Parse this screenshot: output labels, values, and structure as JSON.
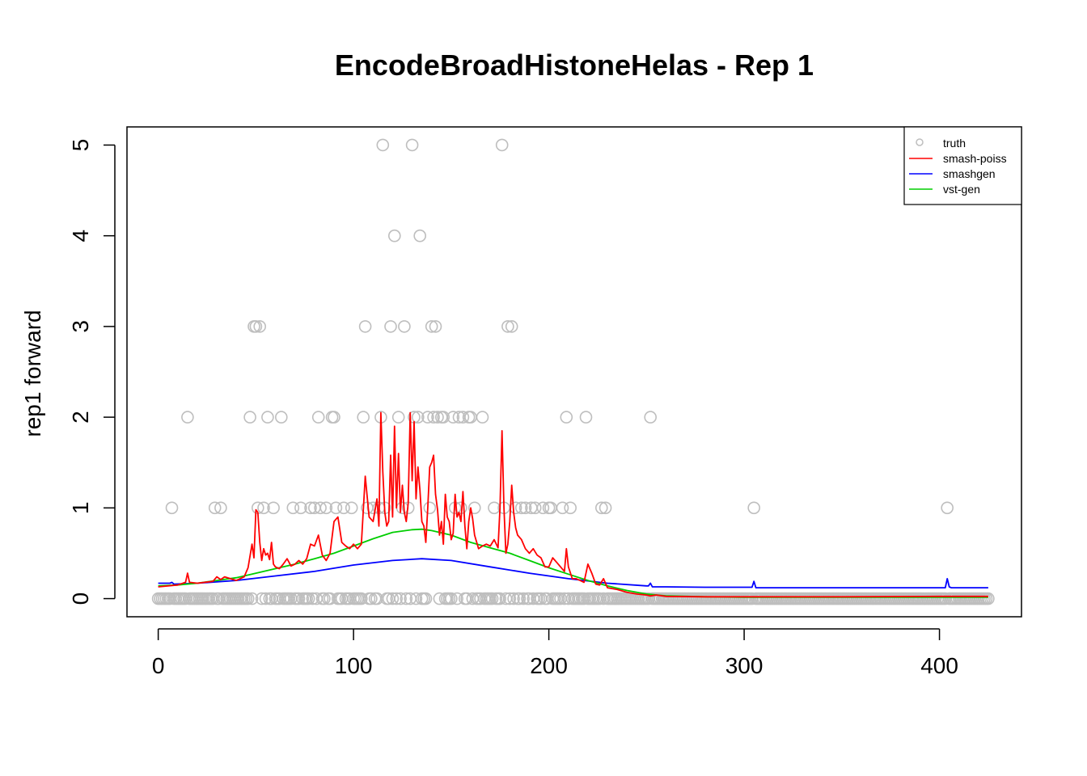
{
  "chart_data": {
    "type": "scatter",
    "title": "EncodeBroadHistoneHelas - Rep 1",
    "xlabel": "",
    "ylabel": "rep1 forward",
    "xlim": [
      -16,
      442
    ],
    "ylim": [
      -0.2,
      5.2
    ],
    "x_ticks": [
      0,
      100,
      200,
      300,
      400
    ],
    "y_ticks": [
      0,
      1,
      2,
      3,
      4,
      5
    ],
    "grid": false,
    "legend_position": "top-right",
    "colors": {
      "truth": "#BEBEBE",
      "smash_poiss": "#FF0000",
      "smashgen": "#0000FF",
      "vst_gen": "#00CD00"
    },
    "n_points": 426,
    "truth_nonzero": [
      {
        "x": 7,
        "y": 1
      },
      {
        "x": 15,
        "y": 2
      },
      {
        "x": 29,
        "y": 1
      },
      {
        "x": 32,
        "y": 1
      },
      {
        "x": 47,
        "y": 2
      },
      {
        "x": 49,
        "y": 3
      },
      {
        "x": 50,
        "y": 3
      },
      {
        "x": 51,
        "y": 1
      },
      {
        "x": 52,
        "y": 3
      },
      {
        "x": 54,
        "y": 1
      },
      {
        "x": 56,
        "y": 2
      },
      {
        "x": 59,
        "y": 1
      },
      {
        "x": 63,
        "y": 2
      },
      {
        "x": 69,
        "y": 1
      },
      {
        "x": 73,
        "y": 1
      },
      {
        "x": 78,
        "y": 1
      },
      {
        "x": 80,
        "y": 1
      },
      {
        "x": 82,
        "y": 2
      },
      {
        "x": 83,
        "y": 1
      },
      {
        "x": 86,
        "y": 1
      },
      {
        "x": 89,
        "y": 2
      },
      {
        "x": 90,
        "y": 2
      },
      {
        "x": 91,
        "y": 1
      },
      {
        "x": 95,
        "y": 1
      },
      {
        "x": 99,
        "y": 1
      },
      {
        "x": 105,
        "y": 2
      },
      {
        "x": 106,
        "y": 3
      },
      {
        "x": 107,
        "y": 1
      },
      {
        "x": 110,
        "y": 1
      },
      {
        "x": 113,
        "y": 1
      },
      {
        "x": 114,
        "y": 2
      },
      {
        "x": 115,
        "y": 5
      },
      {
        "x": 116,
        "y": 1
      },
      {
        "x": 119,
        "y": 3
      },
      {
        "x": 121,
        "y": 4
      },
      {
        "x": 123,
        "y": 2
      },
      {
        "x": 125,
        "y": 1
      },
      {
        "x": 126,
        "y": 3
      },
      {
        "x": 128,
        "y": 1
      },
      {
        "x": 130,
        "y": 5
      },
      {
        "x": 131,
        "y": 2
      },
      {
        "x": 133,
        "y": 2
      },
      {
        "x": 134,
        "y": 4
      },
      {
        "x": 138,
        "y": 2
      },
      {
        "x": 139,
        "y": 1
      },
      {
        "x": 140,
        "y": 3
      },
      {
        "x": 141,
        "y": 2
      },
      {
        "x": 142,
        "y": 3
      },
      {
        "x": 143,
        "y": 2
      },
      {
        "x": 145,
        "y": 2
      },
      {
        "x": 146,
        "y": 2
      },
      {
        "x": 151,
        "y": 2
      },
      {
        "x": 152,
        "y": 1
      },
      {
        "x": 154,
        "y": 2
      },
      {
        "x": 155,
        "y": 1
      },
      {
        "x": 156,
        "y": 2
      },
      {
        "x": 159,
        "y": 2
      },
      {
        "x": 160,
        "y": 2
      },
      {
        "x": 162,
        "y": 1
      },
      {
        "x": 166,
        "y": 2
      },
      {
        "x": 172,
        "y": 1
      },
      {
        "x": 176,
        "y": 5
      },
      {
        "x": 177,
        "y": 1
      },
      {
        "x": 179,
        "y": 3
      },
      {
        "x": 181,
        "y": 3
      },
      {
        "x": 183,
        "y": 1
      },
      {
        "x": 186,
        "y": 1
      },
      {
        "x": 188,
        "y": 1
      },
      {
        "x": 191,
        "y": 1
      },
      {
        "x": 193,
        "y": 1
      },
      {
        "x": 197,
        "y": 1
      },
      {
        "x": 200,
        "y": 1
      },
      {
        "x": 201,
        "y": 1
      },
      {
        "x": 207,
        "y": 1
      },
      {
        "x": 209,
        "y": 2
      },
      {
        "x": 211,
        "y": 1
      },
      {
        "x": 219,
        "y": 2
      },
      {
        "x": 227,
        "y": 1
      },
      {
        "x": 229,
        "y": 1
      },
      {
        "x": 252,
        "y": 2
      },
      {
        "x": 305,
        "y": 1
      },
      {
        "x": 404,
        "y": 1
      }
    ],
    "series": [
      {
        "name": "smash-poiss",
        "x": [
          0,
          10,
          14,
          15,
          16,
          20,
          28,
          30,
          32,
          34,
          40,
          44,
          46,
          48,
          49,
          50,
          51,
          52,
          53,
          54,
          55,
          56,
          57,
          58,
          59,
          60,
          62,
          64,
          66,
          68,
          70,
          72,
          74,
          76,
          78,
          80,
          82,
          84,
          86,
          88,
          90,
          92,
          94,
          96,
          98,
          100,
          102,
          104,
          106,
          108,
          110,
          112,
          113,
          114,
          115,
          116,
          117,
          118,
          119,
          120,
          121,
          122,
          123,
          124,
          125,
          126,
          127,
          128,
          129,
          130,
          131,
          132,
          133,
          134,
          135,
          136,
          137,
          138,
          139,
          140,
          141,
          142,
          143,
          144,
          145,
          146,
          147,
          148,
          149,
          150,
          151,
          152,
          153,
          154,
          155,
          156,
          157,
          158,
          159,
          160,
          161,
          162,
          164,
          166,
          168,
          170,
          172,
          174,
          175,
          176,
          177,
          178,
          179,
          180,
          181,
          182,
          183,
          184,
          186,
          188,
          190,
          192,
          194,
          196,
          198,
          200,
          202,
          204,
          206,
          208,
          209,
          210,
          212,
          214,
          216,
          218,
          220,
          222,
          224,
          226,
          228,
          230,
          235,
          240,
          245,
          250,
          252,
          255,
          260,
          280,
          300,
          350,
          400,
          425
        ],
        "y": [
          0.13,
          0.15,
          0.18,
          0.28,
          0.18,
          0.17,
          0.19,
          0.24,
          0.21,
          0.24,
          0.2,
          0.24,
          0.34,
          0.6,
          0.45,
          0.98,
          0.95,
          0.62,
          0.42,
          0.55,
          0.48,
          0.5,
          0.43,
          0.62,
          0.38,
          0.35,
          0.33,
          0.38,
          0.44,
          0.36,
          0.38,
          0.42,
          0.38,
          0.44,
          0.6,
          0.58,
          0.7,
          0.48,
          0.42,
          0.5,
          0.85,
          0.9,
          0.62,
          0.58,
          0.55,
          0.6,
          0.55,
          0.6,
          1.35,
          0.9,
          0.85,
          1.1,
          0.8,
          2.05,
          1.4,
          0.95,
          0.8,
          0.85,
          1.58,
          0.9,
          1.9,
          1.0,
          1.6,
          0.95,
          1.25,
          0.95,
          0.85,
          1.05,
          2.05,
          1.3,
          1.95,
          1.1,
          1.45,
          1.2,
          0.85,
          0.8,
          0.62,
          1.0,
          1.45,
          1.5,
          1.58,
          1.15,
          0.98,
          0.7,
          0.85,
          0.6,
          1.15,
          0.9,
          0.85,
          0.65,
          0.72,
          1.15,
          0.9,
          0.95,
          0.85,
          1.18,
          0.8,
          0.55,
          0.85,
          1.0,
          0.88,
          0.7,
          0.55,
          0.58,
          0.6,
          0.58,
          0.65,
          0.56,
          1.0,
          1.85,
          1.0,
          0.5,
          0.6,
          0.85,
          1.25,
          0.95,
          0.78,
          0.7,
          0.65,
          0.55,
          0.5,
          0.55,
          0.48,
          0.45,
          0.35,
          0.35,
          0.45,
          0.4,
          0.35,
          0.3,
          0.55,
          0.35,
          0.22,
          0.22,
          0.2,
          0.18,
          0.38,
          0.28,
          0.16,
          0.15,
          0.22,
          0.12,
          0.1,
          0.07,
          0.05,
          0.04,
          0.03,
          0.04,
          0.025,
          0.02,
          0.02,
          0.02,
          0.025,
          0.025
        ]
      },
      {
        "name": "smashgen",
        "x": [
          0,
          6,
          7,
          8,
          20,
          40,
          60,
          80,
          100,
          120,
          135,
          150,
          170,
          190,
          210,
          230,
          250,
          251,
          252,
          253,
          254,
          260,
          280,
          304,
          305,
          306,
          307,
          350,
          403,
          404,
          405,
          406,
          425
        ],
        "y": [
          0.17,
          0.17,
          0.18,
          0.16,
          0.17,
          0.2,
          0.25,
          0.3,
          0.37,
          0.42,
          0.44,
          0.42,
          0.35,
          0.28,
          0.22,
          0.17,
          0.14,
          0.14,
          0.17,
          0.13,
          0.13,
          0.13,
          0.125,
          0.125,
          0.19,
          0.12,
          0.12,
          0.12,
          0.12,
          0.22,
          0.13,
          0.12,
          0.12
        ]
      },
      {
        "name": "vst-gen",
        "x": [
          0,
          10,
          20,
          30,
          40,
          50,
          60,
          70,
          80,
          90,
          100,
          110,
          120,
          130,
          135,
          140,
          150,
          160,
          170,
          180,
          190,
          200,
          210,
          220,
          230,
          240,
          250,
          260,
          280,
          300,
          350,
          400,
          425
        ],
        "y": [
          0.14,
          0.15,
          0.17,
          0.2,
          0.23,
          0.28,
          0.33,
          0.38,
          0.44,
          0.5,
          0.58,
          0.66,
          0.73,
          0.76,
          0.765,
          0.75,
          0.7,
          0.62,
          0.56,
          0.5,
          0.42,
          0.34,
          0.27,
          0.2,
          0.14,
          0.09,
          0.05,
          0.03,
          0.02,
          0.015,
          0.015,
          0.015,
          0.015
        ]
      }
    ],
    "legend": [
      {
        "label": "truth",
        "symbol": "circle",
        "color": "#BEBEBE"
      },
      {
        "label": "smash-poiss",
        "symbol": "line",
        "color": "#FF0000"
      },
      {
        "label": "smashgen",
        "symbol": "line",
        "color": "#0000FF"
      },
      {
        "label": "vst-gen",
        "symbol": "line",
        "color": "#00CD00"
      }
    ]
  }
}
